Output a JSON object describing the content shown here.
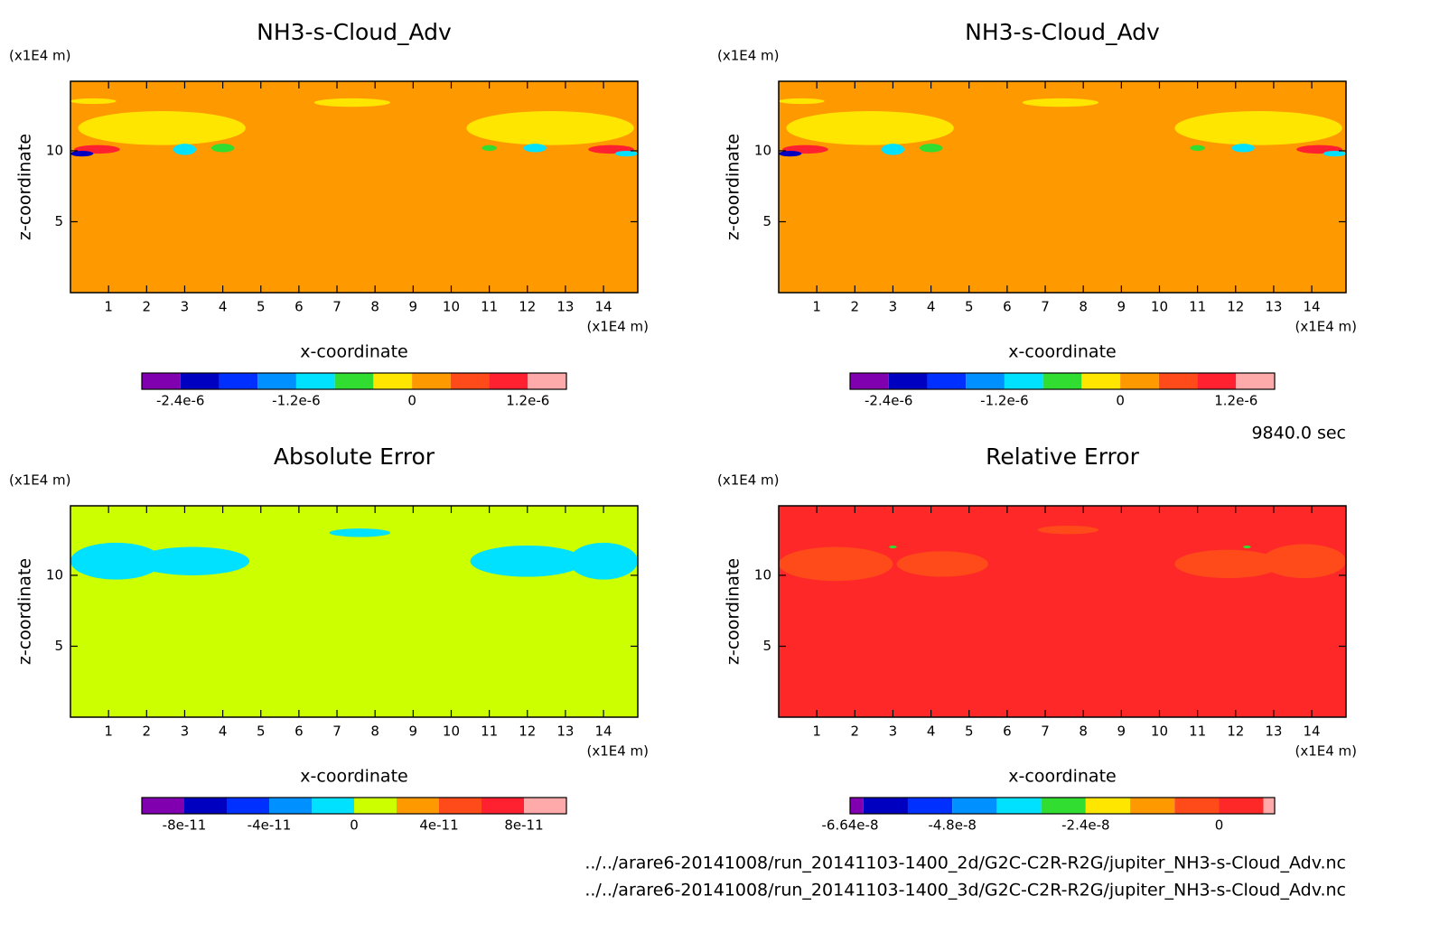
{
  "chart_data": [
    {
      "type": "contour",
      "title": "NH3-s-Cloud_Adv",
      "x_label": "x-coordinate",
      "y_label": "z-coordinate",
      "x_unit": "(x1E4 m)",
      "y_unit": "(x1E4 m)",
      "xlim": [
        0,
        14.9
      ],
      "ylim": [
        0,
        14.9
      ],
      "xticks": [
        1,
        2,
        3,
        4,
        5,
        6,
        7,
        8,
        9,
        10,
        11,
        12,
        13,
        14
      ],
      "yticks": [
        5,
        10
      ],
      "color": "#ff9900",
      "colorbar": {
        "levels": [
          -2.8e-06,
          -2.4e-06,
          -2e-06,
          -1.6e-06,
          -1.2e-06,
          -8e-07,
          -4e-07,
          0,
          4e-07,
          8e-07,
          1.2e-06,
          1.6e-06
        ],
        "colors": [
          "#8000b0",
          "#0000c0",
          "#0030ff",
          "#0090ff",
          "#00e0ff",
          "#30dd30",
          "#ffe600",
          "#ff9900",
          "#ff4a1a",
          "#ff2030",
          "#ffaaaa"
        ],
        "ticks": [
          {
            "value": -2.4e-06,
            "label": "-2.4e-6"
          },
          {
            "value": -1.2e-06,
            "label": "-1.2e-6"
          },
          0,
          {
            "value": 1.2e-06,
            "label": "1.2e-6"
          }
        ]
      }
    },
    {
      "type": "contour",
      "title": "NH3-s-Cloud_Adv",
      "x_label": "x-coordinate",
      "y_label": "z-coordinate",
      "x_unit": "(x1E4 m)",
      "y_unit": "(x1E4 m)",
      "xlim": [
        0,
        14.9
      ],
      "ylim": [
        0,
        14.9
      ],
      "xticks": [
        1,
        2,
        3,
        4,
        5,
        6,
        7,
        8,
        9,
        10,
        11,
        12,
        13,
        14
      ],
      "yticks": [
        5,
        10
      ],
      "color": "#ff9900",
      "colorbar": {
        "levels": [
          -2.8e-06,
          -2.4e-06,
          -2e-06,
          -1.6e-06,
          -1.2e-06,
          -8e-07,
          -4e-07,
          0,
          4e-07,
          8e-07,
          1.2e-06,
          1.6e-06
        ],
        "colors": [
          "#8000b0",
          "#0000c0",
          "#0030ff",
          "#0090ff",
          "#00e0ff",
          "#30dd30",
          "#ffe600",
          "#ff9900",
          "#ff4a1a",
          "#ff2030",
          "#ffaaaa"
        ],
        "ticks": [
          {
            "value": -2.4e-06,
            "label": "-2.4e-6"
          },
          {
            "value": -1.2e-06,
            "label": "-1.2e-6"
          },
          0,
          {
            "value": 1.2e-06,
            "label": "1.2e-6"
          }
        ]
      }
    },
    {
      "type": "contour",
      "title": "Absolute Error",
      "x_label": "x-coordinate",
      "y_label": "z-coordinate",
      "x_unit": "(x1E4 m)",
      "y_unit": "(x1E4 m)",
      "xlim": [
        0,
        14.9
      ],
      "ylim": [
        0,
        14.9
      ],
      "xticks": [
        1,
        2,
        3,
        4,
        5,
        6,
        7,
        8,
        9,
        10,
        11,
        12,
        13,
        14
      ],
      "yticks": [
        5,
        10
      ],
      "color": "#ccff00",
      "colorbar": {
        "levels": [
          -1e-10,
          -8e-11,
          -6e-11,
          -4e-11,
          -2e-11,
          0,
          2e-11,
          4e-11,
          6e-11,
          8e-11,
          1e-10
        ],
        "colors": [
          "#8000b0",
          "#0000c0",
          "#0030ff",
          "#0090ff",
          "#00e0ff",
          "#ccff00",
          "#ff9900",
          "#ff4a1a",
          "#ff2030",
          "#ffaaaa"
        ],
        "ticks": [
          {
            "value": -8e-11,
            "label": "-8e-11"
          },
          {
            "value": -4e-11,
            "label": "-4e-11"
          },
          0,
          {
            "value": 4e-11,
            "label": "4e-11"
          },
          {
            "value": 8e-11,
            "label": "8e-11"
          }
        ]
      }
    },
    {
      "type": "contour",
      "title": "Relative Error",
      "x_label": "x-coordinate",
      "y_label": "z-coordinate",
      "x_unit": "(x1E4 m)",
      "y_unit": "(x1E4 m)",
      "xlim": [
        0,
        14.9
      ],
      "ylim": [
        0,
        14.9
      ],
      "xticks": [
        1,
        2,
        3,
        4,
        5,
        6,
        7,
        8,
        9,
        10,
        11,
        12,
        13,
        14
      ],
      "yticks": [
        5,
        10
      ],
      "color": "#ff2828",
      "colorbar": {
        "levels": [
          -6.64e-08,
          -6.4e-08,
          -5.6e-08,
          -4.8e-08,
          -4e-08,
          -3.2e-08,
          -2.4e-08,
          -1.6e-08,
          -8e-09,
          0,
          8e-09,
          1e-08
        ],
        "colors": [
          "#8000b0",
          "#0000c0",
          "#0030ff",
          "#0090ff",
          "#00e0ff",
          "#30dd30",
          "#ffe600",
          "#ff9900",
          "#ff4a1a",
          "#ff2828",
          "#ffaaaa"
        ],
        "ticks": [
          {
            "value": -6.64e-08,
            "label": "-6.64e-8"
          },
          {
            "value": -4.8e-08,
            "label": "-4.8e-8"
          },
          {
            "value": -2.4e-08,
            "label": "-2.4e-8"
          },
          0
        ]
      }
    }
  ],
  "time": "9840.0 sec",
  "files": [
    "../../arare6-20141008/run_20141103-1400_2d/G2C-C2R-R2G/jupiter_NH3-s-Cloud_Adv.nc",
    "../../arare6-20141008/run_20141103-1400_3d/G2C-C2R-R2G/jupiter_NH3-s-Cloud_Adv.nc"
  ]
}
